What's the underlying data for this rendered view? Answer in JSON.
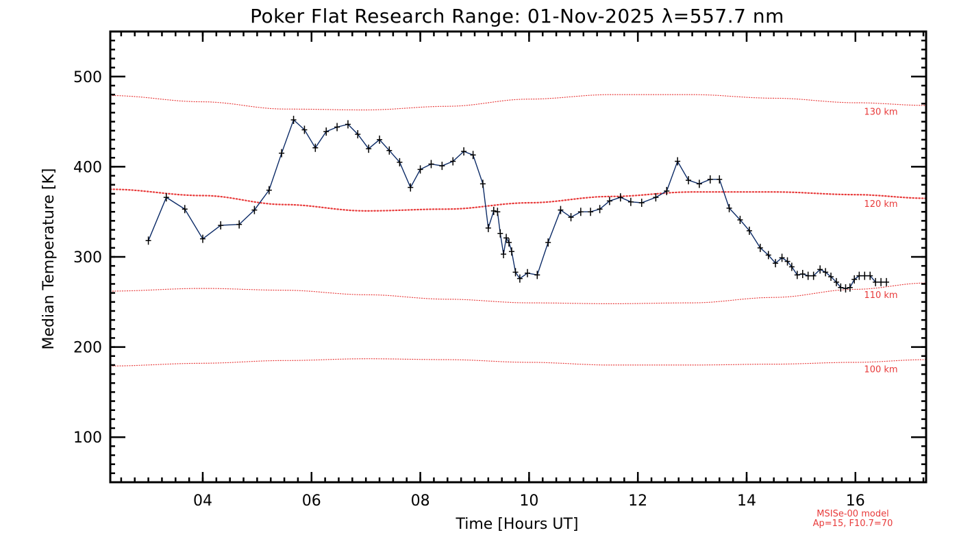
{
  "chart_data": {
    "type": "line",
    "title": "Poker Flat Research Range: 01-Nov-2025 λ=557.7 nm",
    "xlabel": "Time [Hours UT]",
    "ylabel": "Median Temperature [K]",
    "xlim": [
      2.3,
      17.3
    ],
    "ylim": [
      50,
      550
    ],
    "x_ticks": [
      4,
      6,
      8,
      10,
      12,
      14,
      16
    ],
    "x_tick_labels": [
      "04",
      "06",
      "08",
      "10",
      "12",
      "14",
      "16"
    ],
    "y_ticks": [
      100,
      200,
      300,
      400,
      500
    ],
    "y_tick_labels": [
      "100",
      "200",
      "300",
      "400",
      "500"
    ],
    "x_minor_step": 0.25,
    "y_minor_step": 10,
    "grid": false,
    "series": [
      {
        "color": "#0b2a66",
        "marker": "plus",
        "x": [
          3.0,
          3.33,
          3.67,
          4.0,
          4.33,
          4.67,
          4.95,
          5.22,
          5.45,
          5.67,
          5.87,
          6.07,
          6.27,
          6.47,
          6.67,
          6.85,
          7.05,
          7.25,
          7.43,
          7.62,
          7.82,
          8.0,
          8.2,
          8.4,
          8.6,
          8.8,
          8.97,
          9.15,
          9.25,
          9.35,
          9.42,
          9.47,
          9.53,
          9.58,
          9.63,
          9.68,
          9.75,
          9.83,
          9.97,
          10.15,
          10.35,
          10.58,
          10.77,
          10.95,
          11.13,
          11.3,
          11.48,
          11.68,
          11.87,
          12.07,
          12.33,
          12.53,
          12.73,
          12.93,
          13.13,
          13.33,
          13.5,
          13.68,
          13.88,
          14.05,
          14.25,
          14.4,
          14.53,
          14.65,
          14.75,
          14.83,
          14.93,
          15.03,
          15.13,
          15.23,
          15.35,
          15.45,
          15.55,
          15.65,
          15.73,
          15.82,
          15.9,
          15.98,
          16.07,
          16.17,
          16.27,
          16.37,
          16.47,
          16.57
        ],
        "y": [
          318,
          366,
          353,
          320,
          335,
          336,
          352,
          374,
          415,
          452,
          441,
          421,
          439,
          444,
          447,
          436,
          420,
          430,
          418,
          405,
          377,
          397,
          403,
          401,
          406,
          417,
          413,
          381,
          332,
          351,
          350,
          326,
          303,
          321,
          316,
          306,
          283,
          276,
          282,
          280,
          316,
          352,
          344,
          350,
          350,
          353,
          362,
          366,
          361,
          360,
          366,
          373,
          406,
          385,
          381,
          386,
          386,
          354,
          341,
          329,
          310,
          302,
          293,
          299,
          295,
          289,
          280,
          281,
          279,
          279,
          286,
          283,
          278,
          272,
          266,
          265,
          266,
          275,
          279,
          279,
          279,
          272,
          272,
          272
        ]
      }
    ],
    "model_curves": [
      {
        "label": "130 km",
        "style": "dotted-thin",
        "x": [
          2.3,
          4.0,
          5.5,
          7.0,
          8.5,
          10.0,
          11.5,
          13.0,
          14.5,
          16.0,
          17.3
        ],
        "y": [
          479,
          472,
          464,
          463,
          467,
          475,
          480,
          480,
          476,
          471,
          468
        ]
      },
      {
        "label": "120 km",
        "style": "dotted-thick",
        "x": [
          2.3,
          4.0,
          5.5,
          7.0,
          8.5,
          10.0,
          11.5,
          13.0,
          14.5,
          16.0,
          17.3
        ],
        "y": [
          375,
          368,
          358,
          351,
          353,
          360,
          367,
          372,
          372,
          369,
          365
        ]
      },
      {
        "label": "110 km",
        "style": "dotted-thin",
        "x": [
          2.3,
          4.0,
          5.5,
          7.0,
          8.5,
          10.0,
          11.5,
          13.0,
          14.5,
          16.0,
          17.3
        ],
        "y": [
          262,
          265,
          263,
          258,
          253,
          249,
          248,
          249,
          255,
          264,
          271
        ]
      },
      {
        "label": "100 km",
        "style": "dotted-thin",
        "x": [
          2.3,
          4.0,
          5.5,
          7.0,
          8.5,
          10.0,
          11.5,
          13.0,
          14.5,
          16.0,
          17.3
        ],
        "y": [
          179,
          182,
          185,
          187,
          186,
          183,
          180,
          180,
          181,
          183,
          186
        ]
      }
    ],
    "model_credit": [
      "MSISe-00 model",
      "Ap=15, F10.7=70"
    ],
    "colors": {
      "data_line": "#0b2a66",
      "marker": "#000000",
      "model": "#e83a3a",
      "axes": "#000000"
    }
  }
}
